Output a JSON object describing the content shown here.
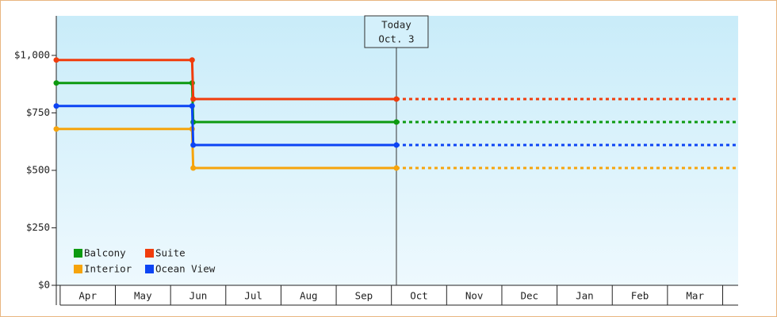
{
  "chart_data": {
    "type": "line",
    "categories": [
      "Apr",
      "May",
      "Jun",
      "Jul",
      "Aug",
      "Sep",
      "Oct",
      "Nov",
      "Dec",
      "Jan",
      "Feb",
      "Mar"
    ],
    "x": [
      -0.07,
      2.39,
      2.41,
      6.09
    ],
    "xlim": [
      -0.07,
      12.28
    ],
    "ylim": [
      0,
      1172
    ],
    "yticks": [
      {
        "value": 0,
        "label": "$0"
      },
      {
        "value": 250,
        "label": "$250"
      },
      {
        "value": 500,
        "label": "$500"
      },
      {
        "value": 750,
        "label": "$750"
      },
      {
        "value": 1000,
        "label": "$1,000"
      }
    ],
    "series": [
      {
        "name": "Balcony",
        "color": "#0c9a10",
        "values": [
          880,
          880,
          710,
          710
        ]
      },
      {
        "name": "Suite",
        "color": "#f03c0c",
        "values": [
          980,
          980,
          810,
          810
        ]
      },
      {
        "name": "Interior",
        "color": "#f6a40c",
        "values": [
          680,
          680,
          510,
          510
        ]
      },
      {
        "name": "Ocean View",
        "color": "#0c44f4",
        "values": [
          780,
          780,
          610,
          610
        ]
      }
    ],
    "annotation": {
      "lines": [
        "Today",
        "Oct. 3"
      ],
      "x": 6.09
    },
    "legend": "lower left"
  }
}
